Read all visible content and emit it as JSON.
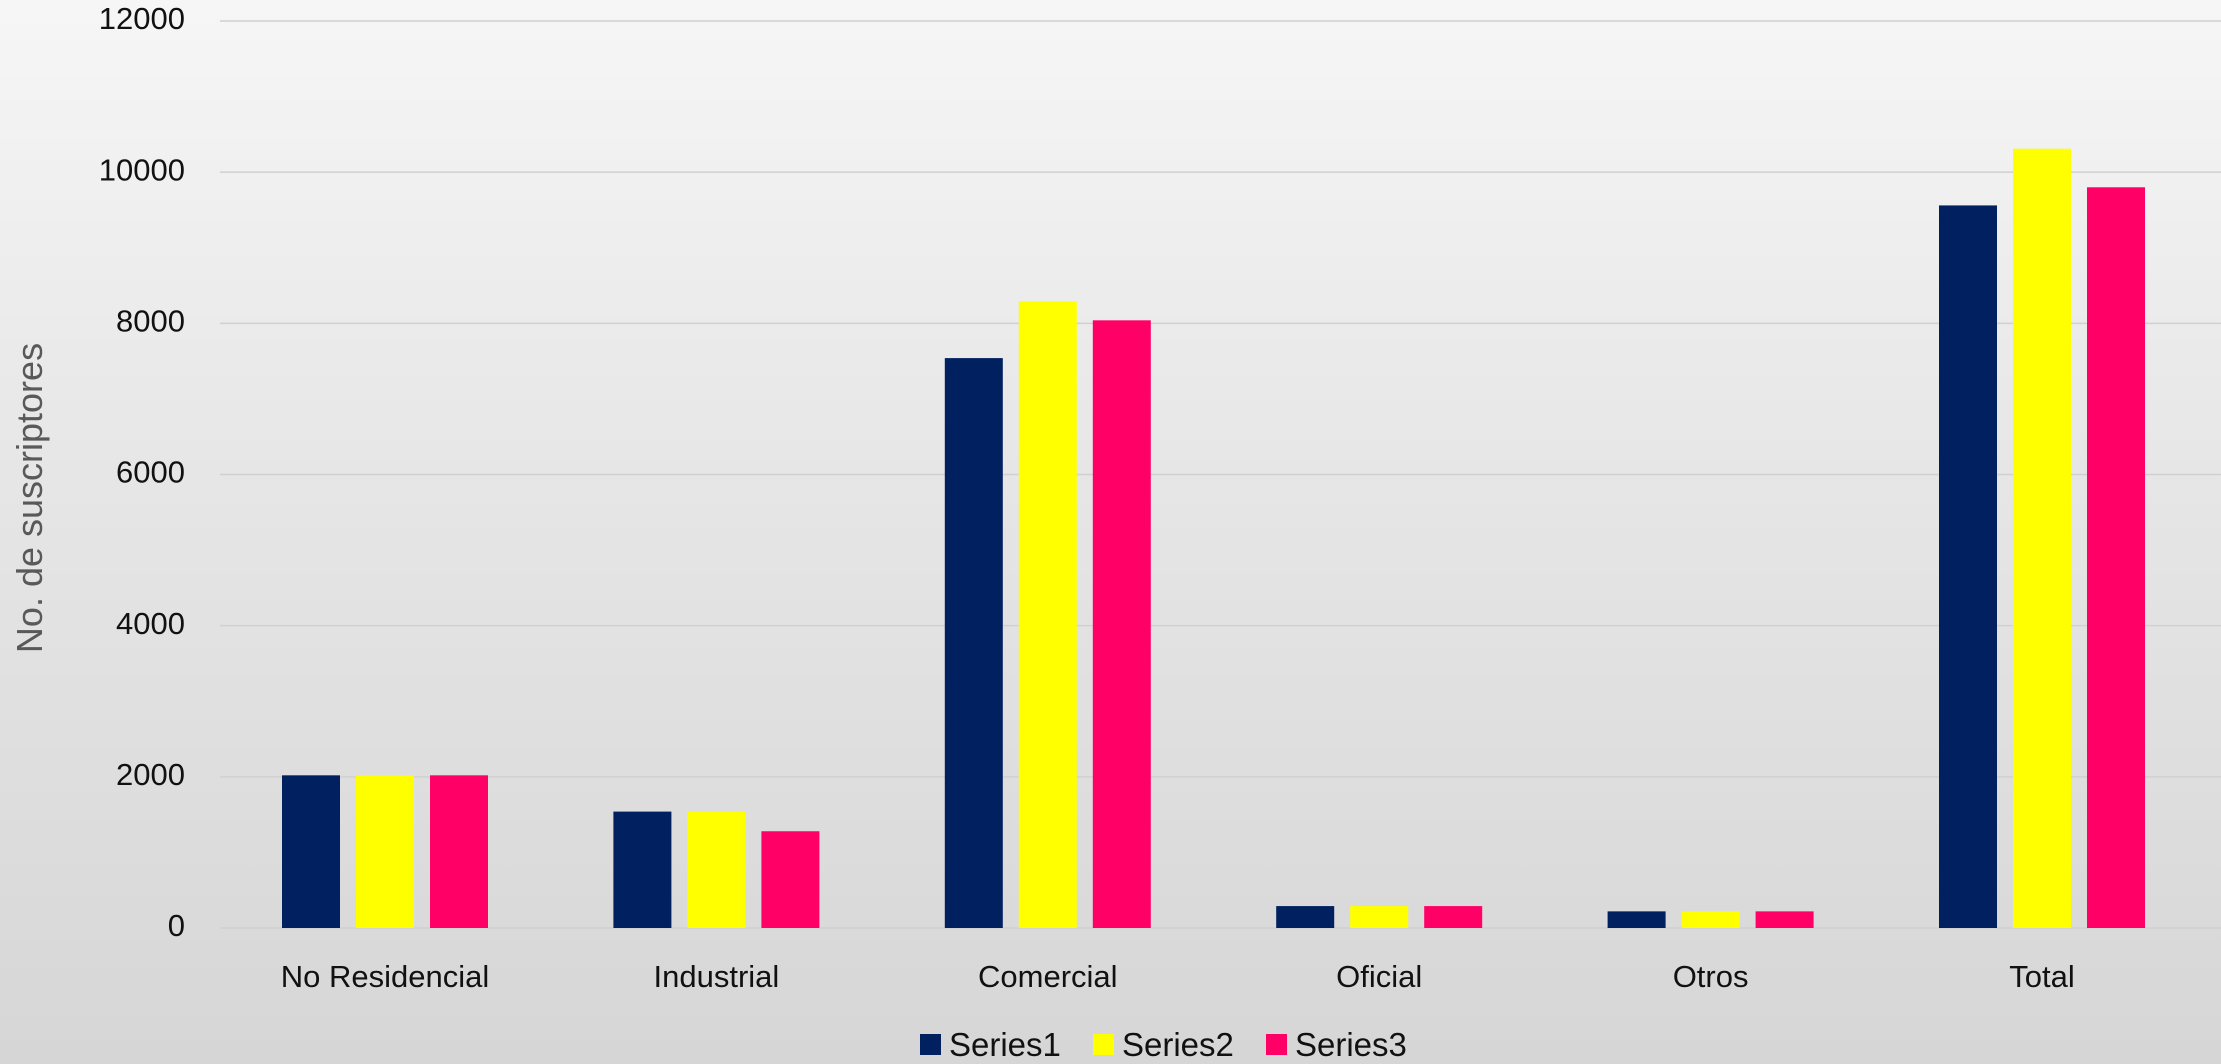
{
  "chart_data": {
    "type": "bar",
    "title": "",
    "xlabel": "",
    "ylabel": "No. de suscriptores",
    "ylim": [
      0,
      12000
    ],
    "yticks": [
      0,
      2000,
      4000,
      6000,
      8000,
      10000,
      12000
    ],
    "grid": true,
    "legend_position": "bottom",
    "categories": [
      "No Residencial",
      "Industrial",
      "Comercial",
      "Oficial",
      "Otros",
      "Total"
    ],
    "series": [
      {
        "name": "Series1",
        "color": "#002060",
        "values": [
          2020,
          1540,
          7540,
          290,
          220,
          9560
        ]
      },
      {
        "name": "Series2",
        "color": "#ffff00",
        "values": [
          2020,
          1540,
          8290,
          290,
          220,
          10310
        ]
      },
      {
        "name": "Series3",
        "color": "#ff0066",
        "values": [
          2020,
          1280,
          8040,
          290,
          220,
          9800
        ]
      }
    ]
  }
}
